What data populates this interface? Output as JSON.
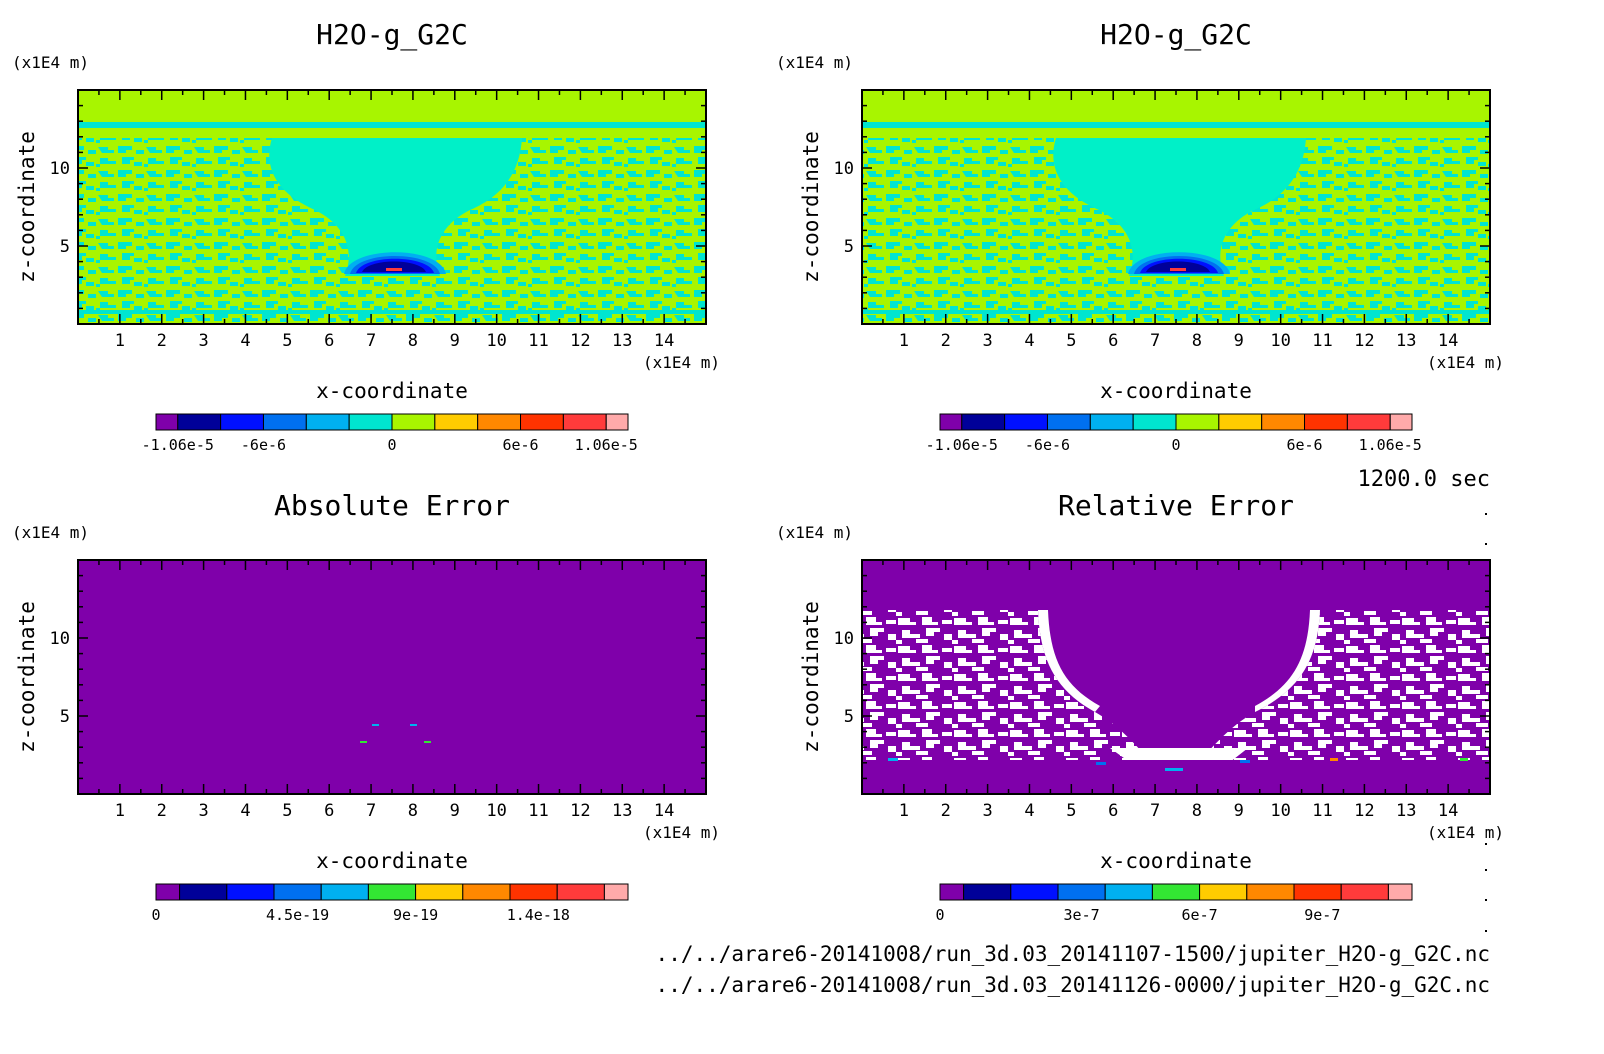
{
  "time_label": "1200.0 sec",
  "files": [
    "../../arare6-20141008/run_3d.03_20141107-1500/jupiter_H2O-g_G2C.nc",
    "../../arare6-20141008/run_3d.03_20141126-0000/jupiter_H2O-g_G2C.nc"
  ],
  "colors": {
    "purple": "#7f00aa",
    "navy": "#000099",
    "blue": "#0010ff",
    "mid_blue": "#0070f0",
    "sky": "#00b0f0",
    "cyan": "#00e5d0",
    "aqua_fill": "#00f0c8",
    "lime": "#a8f500",
    "green": "#33e633",
    "yellow": "#ffcc00",
    "orange": "#ff8800",
    "red_orange": "#ff3300",
    "red": "#ff3b3b",
    "pink": "#ffaaaa",
    "white": "#ffffff"
  },
  "chart_data": [
    {
      "type": "heatmap",
      "title": "H2O-g_G2C",
      "xlabel": "x-coordinate",
      "ylabel": "z-coordinate",
      "x_unit": "(x1E4 m)",
      "y_unit": "(x1E4 m)",
      "xlim": [
        0,
        15
      ],
      "ylim": [
        0,
        15
      ],
      "x_ticks": [
        "1",
        "2",
        "3",
        "4",
        "5",
        "6",
        "7",
        "8",
        "9",
        "10",
        "11",
        "12",
        "13",
        "14"
      ],
      "y_ticks": [
        "5",
        "10"
      ],
      "colorbar_levels": [
        -1.06e-05,
        -8e-06,
        -6e-06,
        -4e-06,
        -2e-06,
        0,
        2e-06,
        4e-06,
        6e-06,
        8e-06,
        1.06e-05
      ],
      "colorbar_colors": [
        "purple",
        "navy",
        "blue",
        "mid_blue",
        "sky",
        "cyan",
        "lime",
        "yellow",
        "orange",
        "red_orange",
        "red",
        "pink"
      ],
      "colorbar_tick_labels": [
        "-1.06e-5",
        "-6e-6",
        "0",
        "6e-6",
        "1.06e-5"
      ]
    },
    {
      "type": "heatmap",
      "title": "H2O-g_G2C",
      "xlabel": "x-coordinate",
      "ylabel": "z-coordinate",
      "x_unit": "(x1E4 m)",
      "y_unit": "(x1E4 m)",
      "xlim": [
        0,
        15
      ],
      "ylim": [
        0,
        15
      ],
      "x_ticks": [
        "1",
        "2",
        "3",
        "4",
        "5",
        "6",
        "7",
        "8",
        "9",
        "10",
        "11",
        "12",
        "13",
        "14"
      ],
      "y_ticks": [
        "5",
        "10"
      ],
      "colorbar_levels": [
        -1.06e-05,
        -8e-06,
        -6e-06,
        -4e-06,
        -2e-06,
        0,
        2e-06,
        4e-06,
        6e-06,
        8e-06,
        1.06e-05
      ],
      "colorbar_colors": [
        "purple",
        "navy",
        "blue",
        "mid_blue",
        "sky",
        "cyan",
        "lime",
        "yellow",
        "orange",
        "red_orange",
        "red",
        "pink"
      ],
      "colorbar_tick_labels": [
        "-1.06e-5",
        "-6e-6",
        "0",
        "6e-6",
        "1.06e-5"
      ]
    },
    {
      "type": "heatmap",
      "title": "Absolute Error",
      "xlabel": "x-coordinate",
      "ylabel": "z-coordinate",
      "x_unit": "(x1E4 m)",
      "y_unit": "(x1E4 m)",
      "xlim": [
        0,
        15
      ],
      "ylim": [
        0,
        15
      ],
      "x_ticks": [
        "1",
        "2",
        "3",
        "4",
        "5",
        "6",
        "7",
        "8",
        "9",
        "10",
        "11",
        "12",
        "13",
        "14"
      ],
      "y_ticks": [
        "5",
        "10"
      ],
      "colorbar_colors": [
        "purple",
        "navy",
        "blue",
        "mid_blue",
        "sky",
        "green",
        "yellow",
        "orange",
        "red_orange",
        "red",
        "pink"
      ],
      "colorbar_tick_labels": [
        "0",
        "4.5e-19",
        "9e-19",
        "1.4e-18"
      ]
    },
    {
      "type": "heatmap",
      "title": "Relative Error",
      "xlabel": "x-coordinate",
      "ylabel": "z-coordinate",
      "x_unit": "(x1E4 m)",
      "y_unit": "(x1E4 m)",
      "xlim": [
        0,
        15
      ],
      "ylim": [
        0,
        15
      ],
      "x_ticks": [
        "1",
        "2",
        "3",
        "4",
        "5",
        "6",
        "7",
        "8",
        "9",
        "10",
        "11",
        "12",
        "13",
        "14"
      ],
      "y_ticks": [
        "5",
        "10"
      ],
      "colorbar_colors": [
        "purple",
        "navy",
        "blue",
        "mid_blue",
        "sky",
        "green",
        "yellow",
        "orange",
        "red_orange",
        "red",
        "pink"
      ],
      "colorbar_tick_labels": [
        "0",
        "3e-7",
        "6e-7",
        "9e-7"
      ]
    }
  ]
}
